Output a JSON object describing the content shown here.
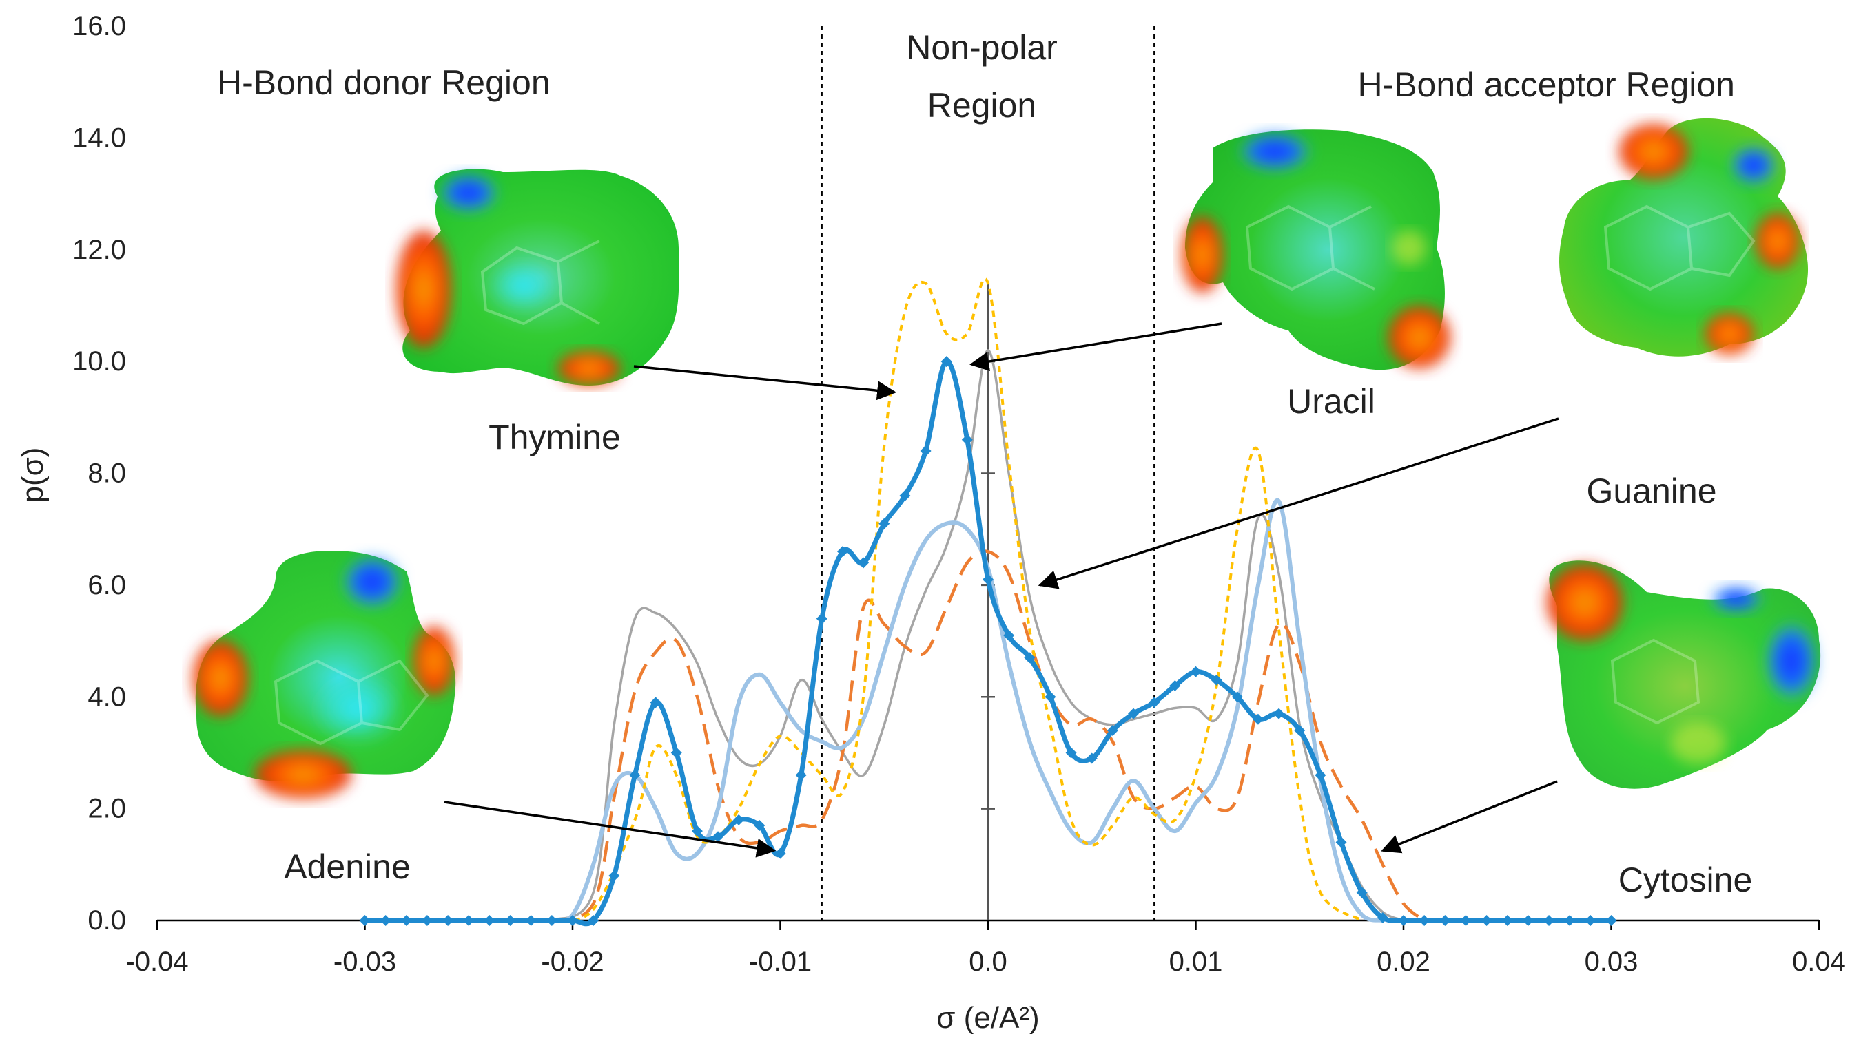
{
  "chart_data": {
    "type": "line",
    "title": "",
    "xlabel": "σ (e/A²)",
    "ylabel": "p(σ)",
    "xlim": [
      -0.04,
      0.04
    ],
    "ylim": [
      0,
      16
    ],
    "x_ticks": [
      "-0.04",
      "-0.03",
      "-0.02",
      "-0.01",
      "0.0",
      "0.01",
      "0.02",
      "0.03",
      "0.04"
    ],
    "y_ticks": [
      "0.0",
      "2.0",
      "4.0",
      "6.0",
      "8.0",
      "10.0",
      "12.0",
      "14.0",
      "16.0"
    ],
    "regions": {
      "donor": "H-Bond donor Region",
      "nonpolar_line1": "Non-polar",
      "nonpolar_line2": "Region",
      "acceptor": "H-Bond acceptor Region"
    },
    "boundaries": [
      -0.008,
      0.008
    ],
    "series": [
      {
        "name": "Thymine",
        "color": "#1f8ad0",
        "style": "solid-markers",
        "x": [
          -0.03,
          -0.029,
          -0.028,
          -0.027,
          -0.026,
          -0.025,
          -0.024,
          -0.023,
          -0.022,
          -0.021,
          -0.02,
          -0.019,
          -0.018,
          -0.017,
          -0.016,
          -0.015,
          -0.014,
          -0.013,
          -0.012,
          -0.011,
          -0.01,
          -0.009,
          -0.008,
          -0.007,
          -0.006,
          -0.005,
          -0.004,
          -0.003,
          -0.002,
          -0.001,
          0.0,
          0.001,
          0.002,
          0.003,
          0.004,
          0.005,
          0.006,
          0.007,
          0.008,
          0.009,
          0.01,
          0.011,
          0.012,
          0.013,
          0.014,
          0.015,
          0.016,
          0.017,
          0.018,
          0.019,
          0.02,
          0.021,
          0.022,
          0.023,
          0.024,
          0.025,
          0.026,
          0.027,
          0.028,
          0.029,
          0.03
        ],
        "y": [
          0,
          0,
          0,
          0,
          0,
          0,
          0,
          0,
          0,
          0,
          0,
          0,
          0.8,
          2.6,
          3.9,
          3.0,
          1.6,
          1.5,
          1.8,
          1.7,
          1.2,
          2.6,
          5.4,
          6.6,
          6.4,
          7.1,
          7.6,
          8.4,
          10.0,
          8.6,
          6.1,
          5.1,
          4.7,
          4.0,
          3.0,
          2.9,
          3.4,
          3.7,
          3.9,
          4.2,
          4.45,
          4.3,
          4.0,
          3.6,
          3.7,
          3.4,
          2.6,
          1.4,
          0.5,
          0.05,
          0,
          0,
          0,
          0,
          0,
          0,
          0,
          0,
          0,
          0,
          0
        ]
      },
      {
        "name": "Uracil",
        "color": "#ffc000",
        "style": "dotted",
        "x": [
          -0.021,
          -0.019,
          -0.017,
          -0.016,
          -0.015,
          -0.014,
          -0.013,
          -0.012,
          -0.011,
          -0.01,
          -0.009,
          -0.008,
          -0.007,
          -0.006,
          -0.005,
          -0.004,
          -0.003,
          -0.002,
          -0.001,
          0.0,
          0.001,
          0.002,
          0.003,
          0.004,
          0.005,
          0.006,
          0.007,
          0.008,
          0.009,
          0.01,
          0.011,
          0.012,
          0.013,
          0.014,
          0.015,
          0.016,
          0.018
        ],
        "y": [
          0,
          0.2,
          1.8,
          3.1,
          2.6,
          1.5,
          1.5,
          2.0,
          2.8,
          3.3,
          3.0,
          2.6,
          2.3,
          4.0,
          8.5,
          10.9,
          11.4,
          10.5,
          10.5,
          11.4,
          8.2,
          5.2,
          3.5,
          1.8,
          1.35,
          1.7,
          2.2,
          1.9,
          1.8,
          2.6,
          4.2,
          7.0,
          8.4,
          5.2,
          2.2,
          0.5,
          0
        ]
      },
      {
        "name": "Guanine",
        "color": "#a5a5a5",
        "style": "solid",
        "x": [
          -0.021,
          -0.019,
          -0.018,
          -0.017,
          -0.016,
          -0.015,
          -0.014,
          -0.013,
          -0.012,
          -0.011,
          -0.01,
          -0.009,
          -0.008,
          -0.007,
          -0.006,
          -0.005,
          -0.004,
          -0.003,
          -0.002,
          -0.001,
          0.0,
          0.001,
          0.002,
          0.003,
          0.004,
          0.005,
          0.006,
          0.007,
          0.008,
          0.009,
          0.01,
          0.011,
          0.012,
          0.013,
          0.014,
          0.015,
          0.016,
          0.017,
          0.018,
          0.019,
          0.02
        ],
        "y": [
          0,
          0.5,
          3.5,
          5.4,
          5.5,
          5.2,
          4.6,
          3.6,
          2.9,
          2.8,
          3.3,
          4.3,
          3.6,
          3.0,
          2.6,
          3.5,
          4.9,
          5.9,
          6.7,
          8.0,
          10.2,
          8.0,
          5.8,
          4.6,
          3.9,
          3.6,
          3.5,
          3.6,
          3.7,
          3.8,
          3.8,
          3.6,
          4.6,
          7.2,
          6.2,
          3.5,
          2.2,
          1.4,
          0.6,
          0.15,
          0
        ]
      },
      {
        "name": "Cytosine",
        "color": "#ed7d31",
        "style": "dashed",
        "x": [
          -0.021,
          -0.019,
          -0.018,
          -0.017,
          -0.016,
          -0.015,
          -0.014,
          -0.013,
          -0.012,
          -0.011,
          -0.01,
          -0.009,
          -0.008,
          -0.007,
          -0.006,
          -0.005,
          -0.004,
          -0.003,
          -0.002,
          -0.001,
          0.0,
          0.001,
          0.002,
          0.003,
          0.004,
          0.005,
          0.006,
          0.007,
          0.008,
          0.009,
          0.01,
          0.011,
          0.012,
          0.013,
          0.014,
          0.015,
          0.016,
          0.017,
          0.018,
          0.019,
          0.02,
          0.021
        ],
        "y": [
          0,
          0.3,
          2.2,
          4.1,
          4.8,
          5.0,
          4.0,
          2.4,
          1.5,
          1.4,
          1.6,
          1.7,
          1.8,
          3.0,
          5.6,
          5.3,
          4.9,
          4.8,
          5.6,
          6.4,
          6.6,
          6.2,
          5.0,
          4.0,
          3.5,
          3.6,
          3.2,
          2.2,
          2.0,
          2.2,
          2.4,
          2.0,
          2.2,
          3.9,
          5.3,
          4.6,
          3.2,
          2.4,
          1.8,
          1.0,
          0.3,
          0
        ]
      },
      {
        "name": "Adenine",
        "color": "#9dc3e6",
        "style": "solid",
        "x": [
          -0.021,
          -0.02,
          -0.019,
          -0.018,
          -0.017,
          -0.016,
          -0.015,
          -0.014,
          -0.013,
          -0.012,
          -0.011,
          -0.01,
          -0.009,
          -0.008,
          -0.007,
          -0.006,
          -0.005,
          -0.004,
          -0.003,
          -0.002,
          -0.001,
          0.0,
          0.001,
          0.002,
          0.003,
          0.004,
          0.005,
          0.006,
          0.007,
          0.008,
          0.009,
          0.01,
          0.011,
          0.012,
          0.013,
          0.014,
          0.015,
          0.016,
          0.017,
          0.018,
          0.019
        ],
        "y": [
          0,
          0.1,
          1.0,
          2.4,
          2.6,
          2.0,
          1.2,
          1.2,
          2.0,
          3.9,
          4.4,
          3.9,
          3.4,
          3.2,
          3.1,
          3.6,
          4.8,
          6.0,
          6.8,
          7.1,
          7.0,
          6.3,
          4.6,
          3.2,
          2.3,
          1.6,
          1.4,
          2.0,
          2.5,
          2.0,
          1.6,
          2.1,
          2.6,
          3.8,
          6.0,
          7.5,
          5.0,
          2.5,
          0.8,
          0.1,
          0
        ]
      }
    ],
    "annotations": [
      {
        "label": "Thymine",
        "pointer_to": [
          -0.0045,
          9.45
        ]
      },
      {
        "label": "Uracil",
        "pointer_to": [
          -0.0008,
          9.95
        ]
      },
      {
        "label": "Guanine",
        "pointer_to": [
          0.0025,
          6.0
        ]
      },
      {
        "label": "Cytosine",
        "pointer_to": [
          0.019,
          1.25
        ]
      },
      {
        "label": "Adenine",
        "pointer_to": [
          -0.0103,
          1.25
        ]
      }
    ]
  }
}
